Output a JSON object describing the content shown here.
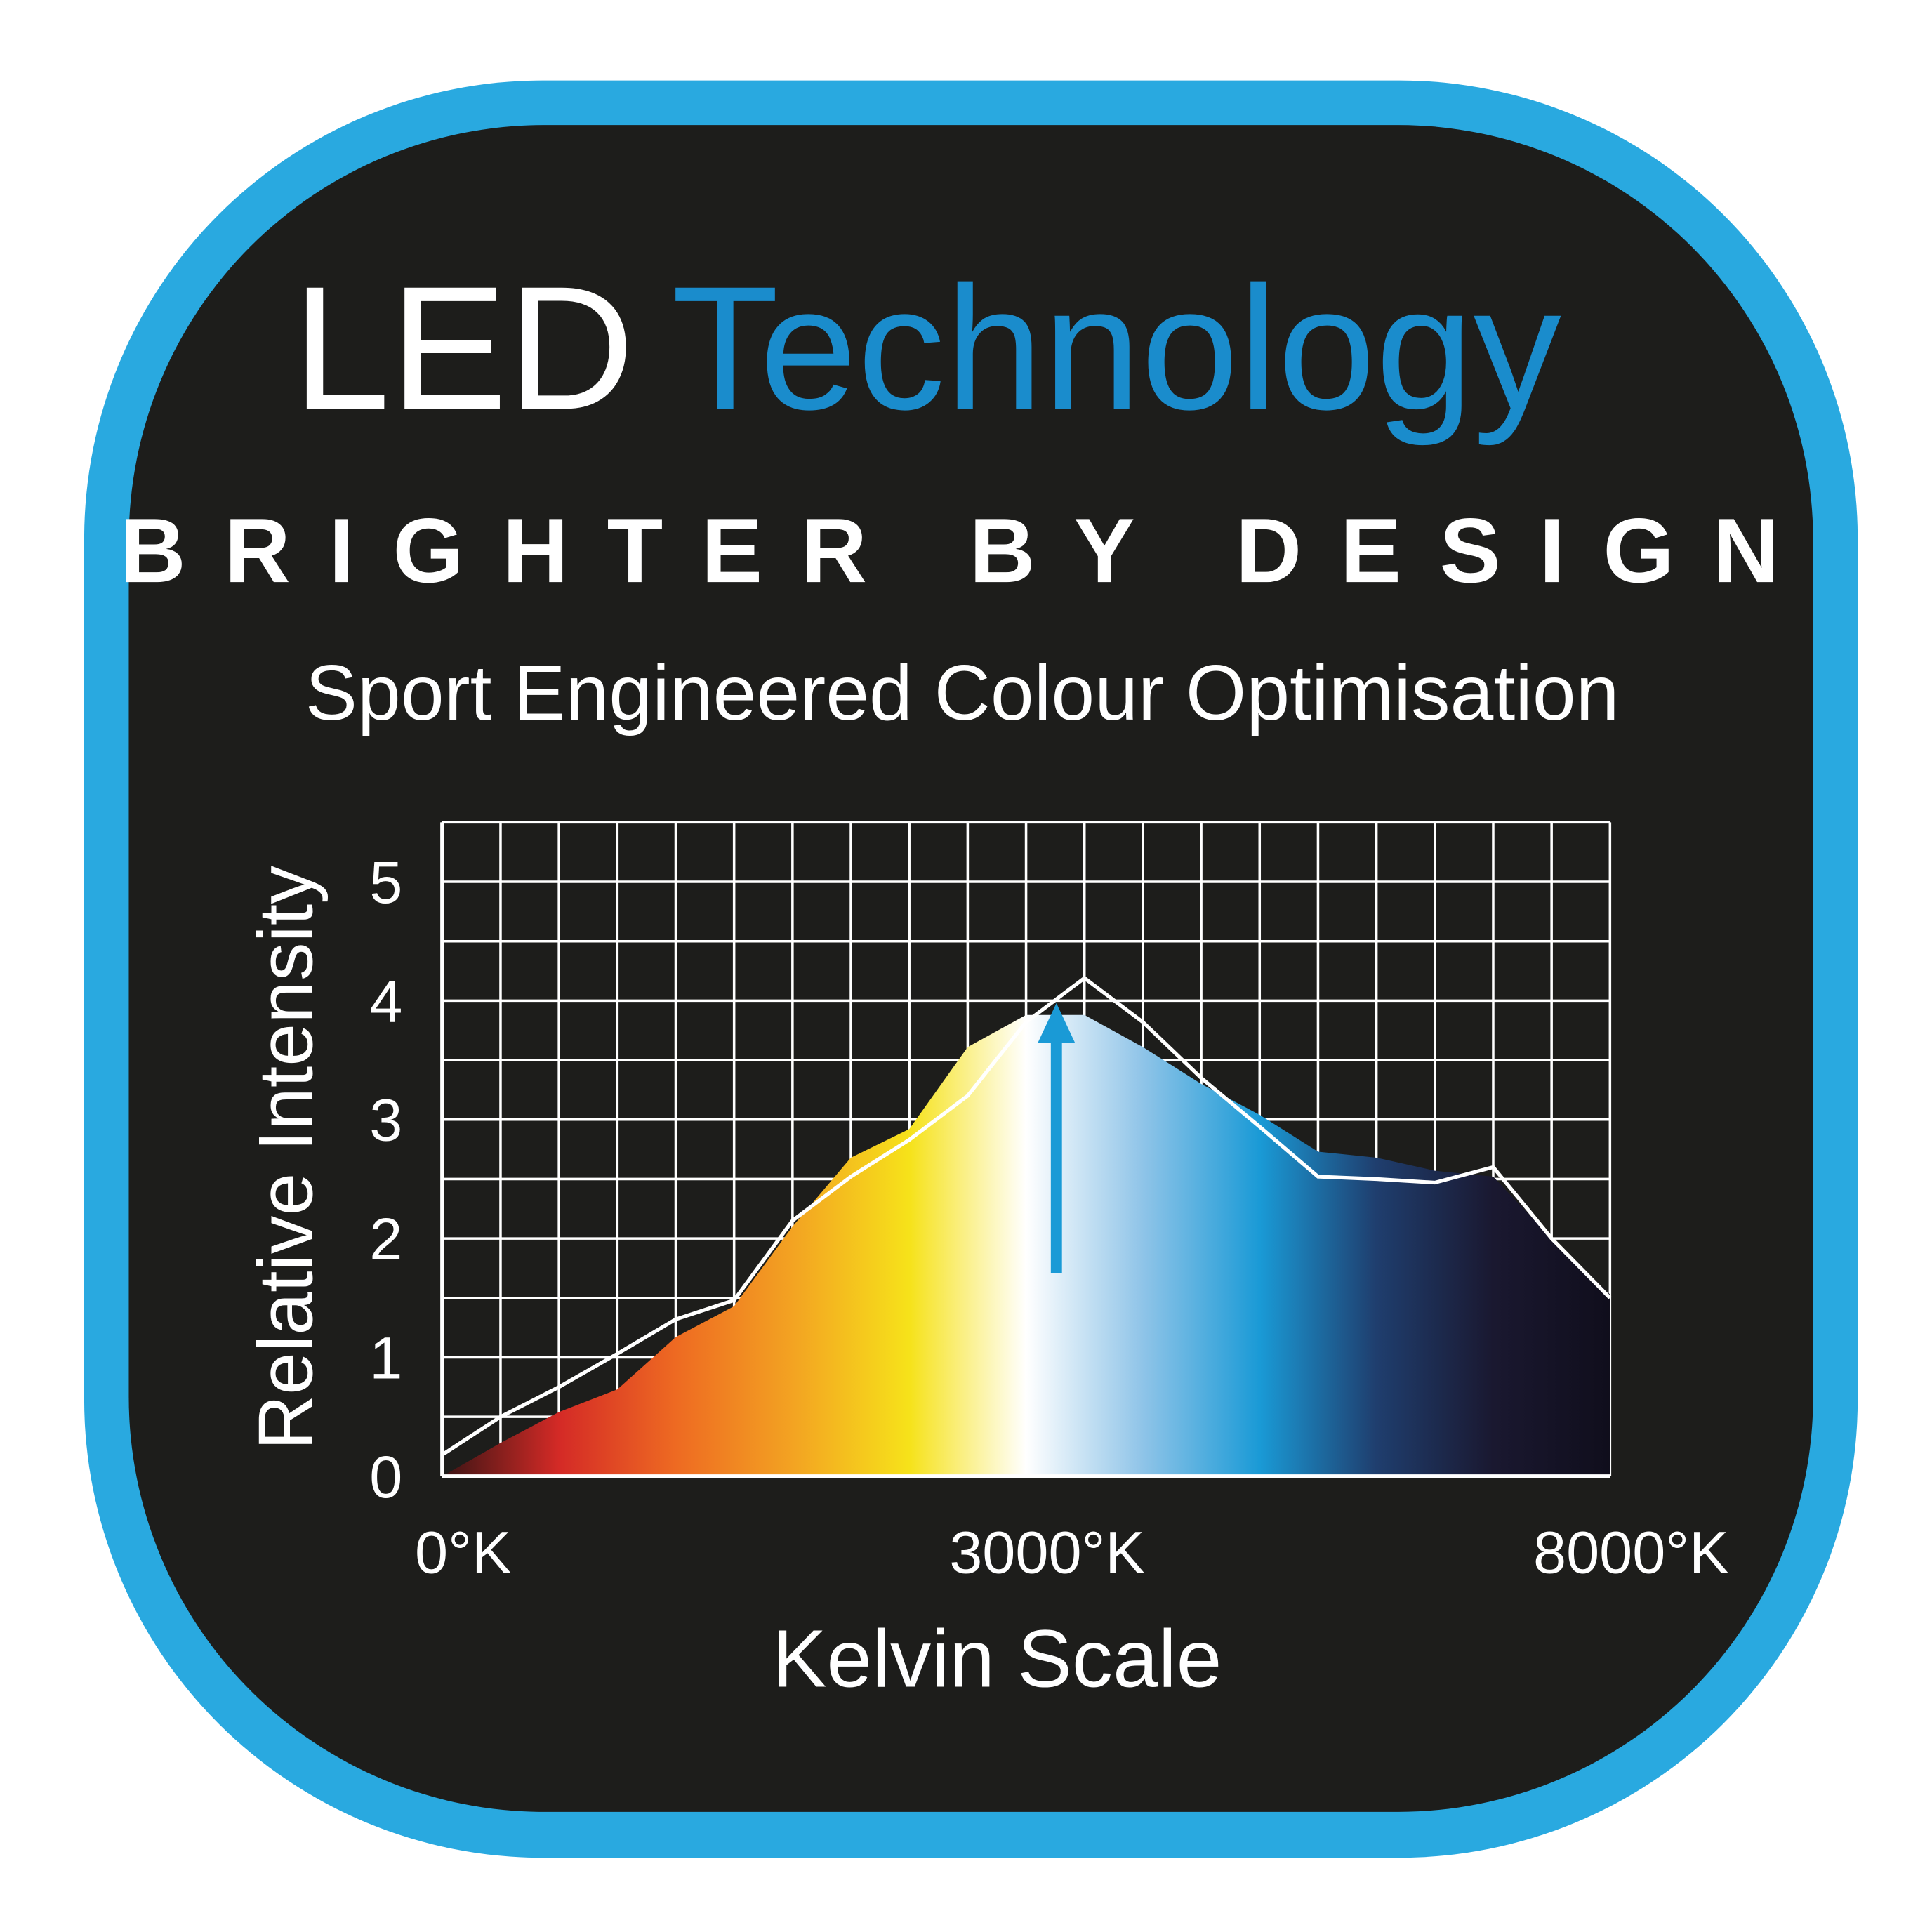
{
  "chart_data": {
    "type": "area",
    "title": [
      "LED",
      "Technology"
    ],
    "subtitle": "BRIGHTER BY DESIGN",
    "caption": "Sport Engineered Colour Optimisation",
    "x_label": "Kelvin Scale",
    "y_label": "Relative Intensity",
    "categories": [
      "0°K",
      null,
      null,
      null,
      null,
      null,
      null,
      null,
      null,
      null,
      "3000°K",
      null,
      null,
      null,
      null,
      null,
      null,
      null,
      null,
      null,
      "8000°K"
    ],
    "series": [
      {
        "values": [
          0,
          0.28,
          0.54,
          0.73,
          1.17,
          1.43,
          2.1,
          2.68,
          2.92,
          3.61,
          3.88,
          3.88,
          3.61,
          3.3,
          3.04,
          2.73,
          2.68,
          2.57,
          2.52,
          2.0,
          1.53
        ],
        "gradient": [
          "#3a1414",
          "#d42a26",
          "#ee6a22",
          "#f3a322",
          "#f6e21a",
          "#ffffff",
          "#8fc4e8",
          "#1a9ad6",
          "#1f3e6e",
          "#1a1830",
          "#100e1c"
        ]
      },
      {
        "color": "#ffffff",
        "values": [
          0.18,
          0.5,
          0.75,
          1.03,
          1.32,
          1.48,
          2.15,
          2.52,
          2.83,
          3.2,
          3.82,
          4.19,
          3.82,
          3.35,
          2.94,
          2.52,
          2.5,
          2.47,
          2.6,
          2.0,
          1.5
        ]
      }
    ],
    "ylim": [
      0,
      5.5
    ],
    "yticks": [
      0,
      1,
      2,
      3,
      4,
      5
    ],
    "ygrid": [
      0,
      0.5,
      1,
      1.5,
      2,
      2.5,
      3,
      3.5,
      4,
      4.5,
      5,
      5.5
    ],
    "grid": true
  }
}
